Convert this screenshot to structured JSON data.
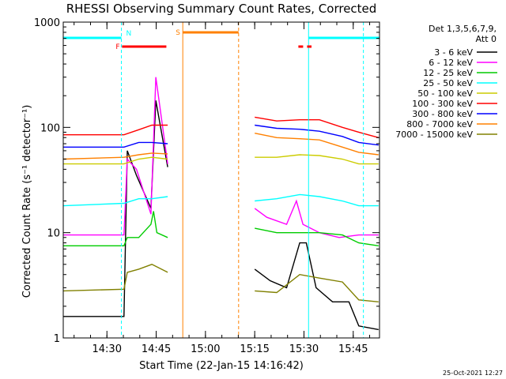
{
  "chart_data": {
    "type": "line",
    "title": "RHESSI Observing Summary Count Rates, Corrected",
    "xlabel": "Start Time (22-Jan-15 14:16:42)",
    "ylabel": "Corrected Count Rate (s⁻¹ detector⁻¹)",
    "yscale": "log",
    "ylim": [
      1,
      1000
    ],
    "xlim_minutes_from_start": [
      0,
      96.3
    ],
    "x_ticks": [
      {
        "label": "14:30",
        "minute": 13.3
      },
      {
        "label": "14:45",
        "minute": 28.3
      },
      {
        "label": "15:00",
        "minute": 43.3
      },
      {
        "label": "15:15",
        "minute": 58.3
      },
      {
        "label": "15:30",
        "minute": 73.3
      },
      {
        "label": "15:45",
        "minute": 88.3
      }
    ],
    "y_ticks": [
      {
        "label": "1",
        "value": 1
      },
      {
        "label": "10",
        "value": 10
      },
      {
        "label": "100",
        "value": 100
      },
      {
        "label": "1000",
        "value": 1000
      }
    ],
    "legend_title": [
      "Det 1,3,5,6,7,9,",
      "Att 0"
    ],
    "legend_placement": "right",
    "series": [
      {
        "name": "3 - 6 keV",
        "color": "#000000",
        "points": [
          [
            0.0,
            1.6
          ],
          [
            18.5,
            1.6
          ],
          [
            19.5,
            60
          ],
          [
            22.3,
            35
          ],
          [
            26.7,
            17
          ],
          [
            28.2,
            180
          ],
          [
            31.8,
            42
          ],
          [
            58.3,
            4.5
          ],
          [
            63,
            3.5
          ],
          [
            68,
            3
          ],
          [
            72,
            8
          ],
          [
            74,
            8
          ],
          [
            77,
            3
          ],
          [
            82,
            2.2
          ],
          [
            87,
            2.2
          ],
          [
            90,
            1.3
          ],
          [
            96,
            1.2
          ]
        ]
      },
      {
        "name": "6 - 12 keV",
        "color": "#ff00ff",
        "points": [
          [
            0.0,
            9.5
          ],
          [
            18.5,
            9.5
          ],
          [
            19.5,
            50
          ],
          [
            22.3,
            40
          ],
          [
            26.7,
            15
          ],
          [
            28.2,
            300
          ],
          [
            31.8,
            45
          ],
          [
            58.3,
            17
          ],
          [
            62,
            14
          ],
          [
            68,
            12
          ],
          [
            71,
            20
          ],
          [
            73,
            12
          ],
          [
            78,
            10
          ],
          [
            84,
            9
          ],
          [
            90,
            9.5
          ],
          [
            96,
            9.5
          ]
        ]
      },
      {
        "name": "12 - 25 keV",
        "color": "#00cc00",
        "points": [
          [
            0.0,
            7.5
          ],
          [
            18.5,
            7.5
          ],
          [
            19.5,
            9
          ],
          [
            23,
            9
          ],
          [
            26.7,
            12
          ],
          [
            27.5,
            16
          ],
          [
            28.5,
            10
          ],
          [
            31.8,
            9
          ],
          [
            58.3,
            11
          ],
          [
            65,
            10
          ],
          [
            72,
            10
          ],
          [
            78,
            10
          ],
          [
            85,
            9.5
          ],
          [
            90,
            8
          ],
          [
            96,
            7.5
          ]
        ]
      },
      {
        "name": "25 - 50 keV",
        "color": "#00ffff",
        "points": [
          [
            0.0,
            18
          ],
          [
            18.5,
            19
          ],
          [
            23,
            21
          ],
          [
            27,
            21
          ],
          [
            31.8,
            22
          ],
          [
            58.3,
            20
          ],
          [
            65,
            21
          ],
          [
            72,
            23
          ],
          [
            78,
            22
          ],
          [
            85,
            20
          ],
          [
            90,
            18
          ],
          [
            96,
            18
          ]
        ]
      },
      {
        "name": "50 - 100 keV",
        "color": "#cccc00",
        "points": [
          [
            0.0,
            45
          ],
          [
            18.5,
            45
          ],
          [
            23,
            50
          ],
          [
            27,
            52
          ],
          [
            31.8,
            50
          ],
          [
            58.3,
            52
          ],
          [
            65,
            52
          ],
          [
            72,
            55
          ],
          [
            78,
            54
          ],
          [
            85,
            50
          ],
          [
            90,
            45
          ],
          [
            96,
            45
          ]
        ]
      },
      {
        "name": "100 - 300 keV",
        "color": "#ff0000",
        "points": [
          [
            0.0,
            85
          ],
          [
            18.5,
            85
          ],
          [
            23,
            95
          ],
          [
            27,
            105
          ],
          [
            31.8,
            105
          ],
          [
            58.3,
            125
          ],
          [
            65,
            115
          ],
          [
            72,
            118
          ],
          [
            78,
            118
          ],
          [
            85,
            100
          ],
          [
            90,
            90
          ],
          [
            96,
            80
          ]
        ]
      },
      {
        "name": "300 - 800 keV",
        "color": "#0000ff",
        "points": [
          [
            0.0,
            65
          ],
          [
            18.5,
            65
          ],
          [
            23,
            72
          ],
          [
            27,
            72
          ],
          [
            31.8,
            70
          ],
          [
            58.3,
            105
          ],
          [
            65,
            98
          ],
          [
            72,
            96
          ],
          [
            78,
            92
          ],
          [
            85,
            82
          ],
          [
            90,
            72
          ],
          [
            96,
            68
          ]
        ]
      },
      {
        "name": "800 - 7000 keV",
        "color": "#ff8000",
        "points": [
          [
            0.0,
            50
          ],
          [
            18.5,
            52
          ],
          [
            23,
            55
          ],
          [
            27,
            57
          ],
          [
            31.8,
            56
          ],
          [
            58.3,
            88
          ],
          [
            65,
            80
          ],
          [
            72,
            78
          ],
          [
            78,
            76
          ],
          [
            85,
            65
          ],
          [
            90,
            58
          ],
          [
            96,
            55
          ]
        ]
      },
      {
        "name": "7000 - 15000 keV",
        "color": "#808000",
        "points": [
          [
            0.0,
            2.8
          ],
          [
            18.5,
            2.9
          ],
          [
            19.5,
            4.2
          ],
          [
            23,
            4.5
          ],
          [
            27,
            5
          ],
          [
            31.8,
            4.2
          ],
          [
            58.3,
            2.8
          ],
          [
            65,
            2.7
          ],
          [
            72,
            4
          ],
          [
            78,
            3.7
          ],
          [
            85,
            3.4
          ],
          [
            90,
            2.3
          ],
          [
            96,
            2.2
          ]
        ]
      }
    ],
    "annotations": [
      {
        "label": "N",
        "color": "#00ffff",
        "kind": "night",
        "minute_ranges": [
          [
            0.0,
            17.7
          ],
          [
            74.7,
            96.3
          ]
        ]
      },
      {
        "label": "F",
        "color": "#ff0000",
        "kind": "flare",
        "minute_ranges": [
          [
            17.9,
            31.4
          ],
          [
            71.6,
            75.6
          ]
        ]
      },
      {
        "label": "S",
        "color": "#ff8000",
        "kind": "saa",
        "minute_ranges": [
          [
            36.4,
            53.4
          ]
        ]
      }
    ],
    "vlines": [
      {
        "color": "#00ffff",
        "style": "dashed",
        "minute": 17.7
      },
      {
        "color": "#ff8000",
        "style": "solid",
        "minute": 36.4
      },
      {
        "color": "#ff8000",
        "style": "dashed",
        "minute": 53.4
      },
      {
        "color": "#00ffff",
        "style": "solid",
        "minute": 74.7
      },
      {
        "color": "#00ffff",
        "style": "dashed",
        "minute": 91.4
      }
    ],
    "gap_minutes": [
      31.8,
      58.3
    ]
  },
  "footer": {
    "timestamp": "25-Oct-2021 12:27"
  }
}
